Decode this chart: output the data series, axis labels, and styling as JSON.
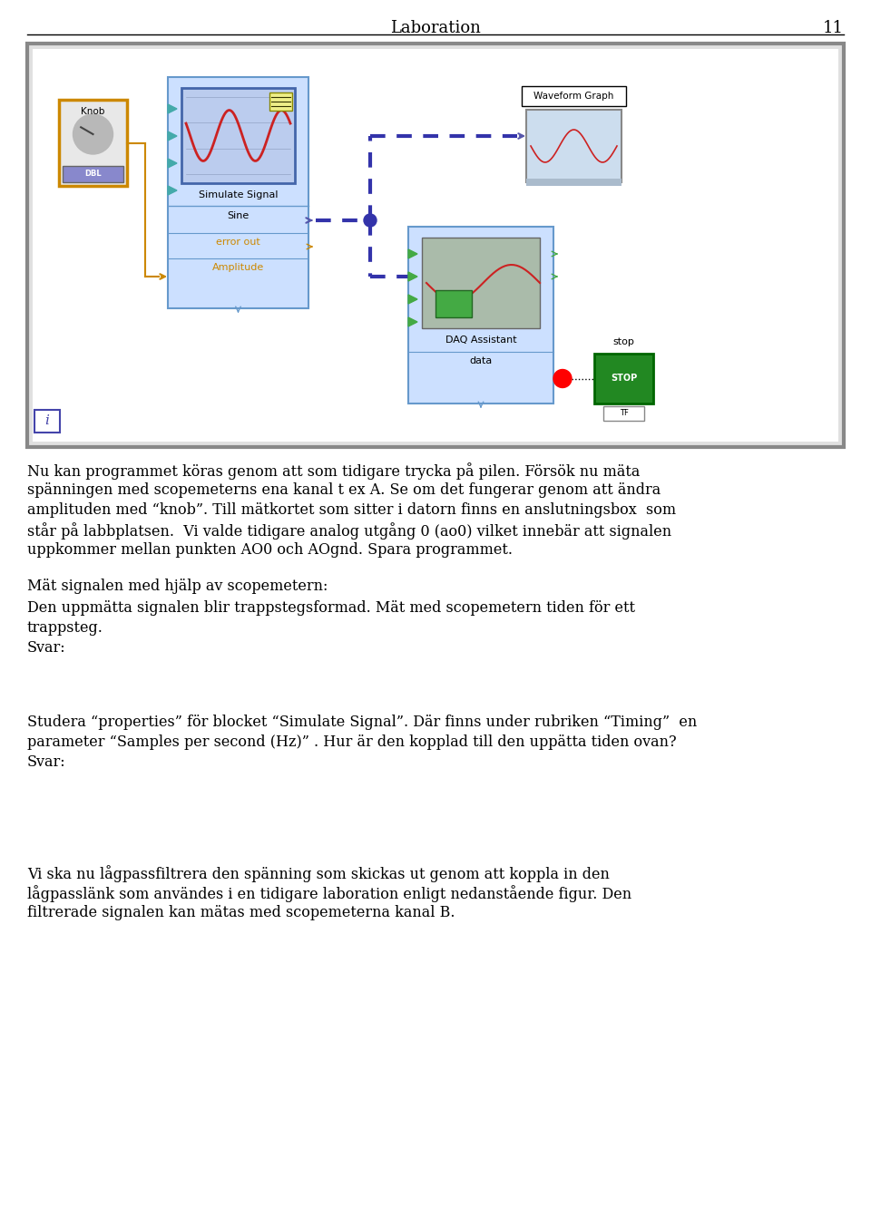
{
  "title": "Laboration",
  "page_number": "11",
  "bg_color": "#ffffff",
  "panel_border": "#888888",
  "panel_bg": "#e0e0e0",
  "panel_inner_bg": "#ffffff",
  "text1": "Nu kan programmet köras genom att som tidigare trycka på pilen. Försök nu mäta spänningen med scopemeterns ena kanal t ex A. Se om det fungerar genom att ändra amplituden med “knob”. Till mätkortet som sitter i datorn finns en anslutningsbox  som står på labbplatsen.  Vi valde tidigare analog utgång 0 (ao0) vilket innebär att signalen uppkommer mellan punkten AO0 och AOgnd. Spara programmet.",
  "text2": "Mät signalen med hjälp av scopemetern:",
  "text3": "Den uppMätta signalen blir trappstegsformad. Mät med scopemetern tiden för ett trappsteg.",
  "text4": "Svar:",
  "text5": "Studera “properties” för blocket “Simulate Signal”. Där finns under rubriken “Timing”  en parameter “Samples per second (Hz)” . Hur är den kopplad till den uppätta tiden ovan?",
  "text6": "Svar:",
  "text7": "Vi ska nu lågpassfiltrera den spänning som skickas ut genom att koppla in den lågpasslänk som användes i en tidigare laboration enligt nedanstående figur. Den filtrerade signalen kan mätas med scopemeterna kanal B.",
  "knob_color": "#cc8800",
  "knob_fill": "#e8e8e8",
  "dbl_fill": "#8888cc",
  "ss_fill": "#cce0ff",
  "ss_border": "#6699cc",
  "daq_fill": "#cce0ff",
  "daq_border": "#6699cc",
  "wg_border": "#888888",
  "wire_color": "#3333aa",
  "orange_wire": "#cc8800",
  "green_arrow": "#44aa44",
  "stop_fill": "#228822",
  "stop_border": "#006600"
}
